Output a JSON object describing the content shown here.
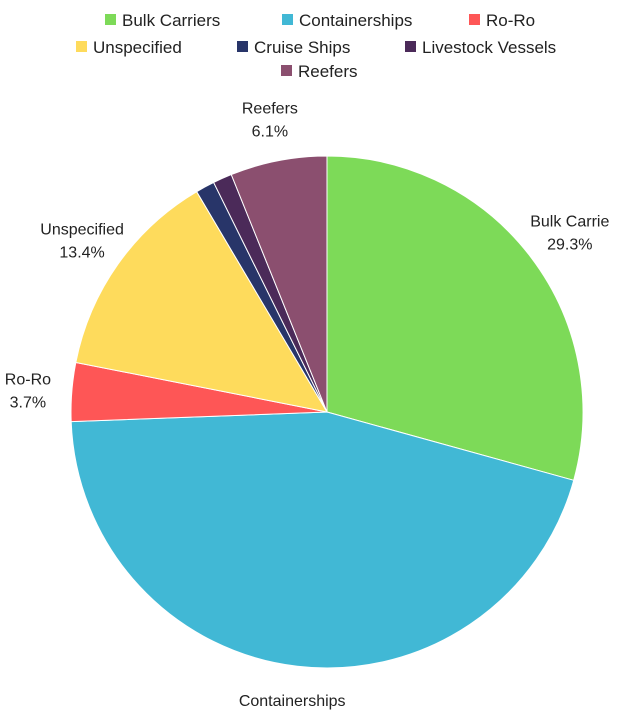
{
  "chart_data": {
    "type": "pie",
    "title": "",
    "legend_position": "top",
    "slices": [
      {
        "label": "Bulk Carriers",
        "display_label": "Bulk Carrie",
        "value": 29.3,
        "percent_label": "29.3%",
        "color": "#7dda58"
      },
      {
        "label": "Containerships",
        "display_label": "Containerships",
        "value": 45.1,
        "percent_label": "45.1%",
        "color": "#41b8d5"
      },
      {
        "label": "Ro-Ro",
        "display_label": "Ro-Ro",
        "value": 3.7,
        "percent_label": "3.7%",
        "color": "#fe5656"
      },
      {
        "label": "Unspecified",
        "display_label": "Unspecified",
        "value": 13.4,
        "percent_label": "13.4%",
        "color": "#fedb5c"
      },
      {
        "label": "Cruise Ships",
        "display_label": "",
        "value": 1.2,
        "percent_label": "",
        "color": "#283569"
      },
      {
        "label": "Livestock Vessels",
        "display_label": "",
        "value": 1.2,
        "percent_label": "",
        "color": "#4b2a59"
      },
      {
        "label": "Reefers",
        "display_label": "Reefers",
        "value": 6.1,
        "percent_label": "6.1%",
        "color": "#8b4f6f"
      }
    ]
  }
}
